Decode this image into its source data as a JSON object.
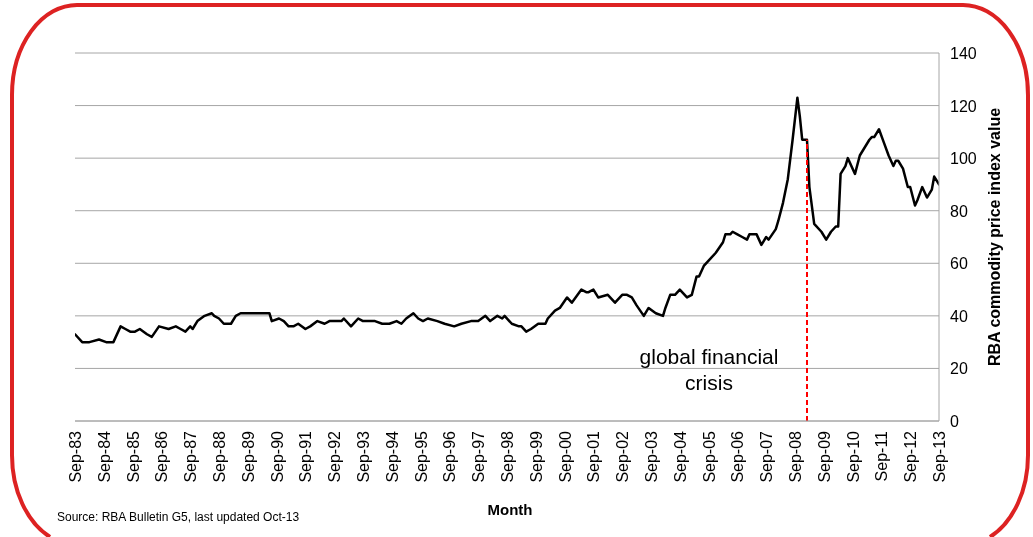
{
  "chart_data": {
    "type": "line",
    "xlabel": "Month",
    "ylabel": "RBA commodity price index value",
    "annotations": [
      "Source: RBA Bulletin G5, last updated Oct-13"
    ],
    "x": [
      "1983-09",
      "1983-12",
      "1984-03",
      "1984-07",
      "1984-10",
      "1985-01",
      "1985-04",
      "1985-06",
      "1985-08",
      "1985-10",
      "1985-12",
      "1986-03",
      "1986-05",
      "1986-08",
      "1986-12",
      "1987-03",
      "1987-05",
      "1987-07",
      "1987-09",
      "1987-10",
      "1987-12",
      "1988-03",
      "1988-06",
      "1988-07",
      "1988-09",
      "1988-11",
      "1989-02",
      "1989-04",
      "1989-06",
      "1989-08",
      "1989-10",
      "1989-11",
      "1990-01",
      "1990-04",
      "1990-06",
      "1990-07",
      "1990-10",
      "1990-12",
      "1991-02",
      "1991-04",
      "1991-06",
      "1991-09",
      "1991-11",
      "1992-02",
      "1992-05",
      "1992-07",
      "1992-09",
      "1992-12",
      "1993-01",
      "1993-04",
      "1993-07",
      "1993-09",
      "1993-11",
      "1994-02",
      "1994-05",
      "1994-08",
      "1994-11",
      "1995-01",
      "1995-03",
      "1995-06",
      "1995-08",
      "1995-10",
      "1995-12",
      "1996-04",
      "1996-07",
      "1996-11",
      "1997-02",
      "1997-06",
      "1997-09",
      "1997-12",
      "1998-02",
      "1998-05",
      "1998-07",
      "1998-08",
      "1998-11",
      "1999-02",
      "1999-03",
      "1999-05",
      "1999-07",
      "1999-10",
      "2000-01",
      "2000-02",
      "2000-05",
      "2000-07",
      "2000-10",
      "2000-12",
      "2001-04",
      "2001-06",
      "2001-07",
      "2001-09",
      "2001-11",
      "2002-03",
      "2002-06",
      "2002-09",
      "2002-11",
      "2003-01",
      "2003-03",
      "2003-06",
      "2003-08",
      "2003-11",
      "2004-02",
      "2004-03",
      "2004-05",
      "2004-07",
      "2004-09",
      "2004-12",
      "2005-02",
      "2005-04",
      "2005-05",
      "2005-07",
      "2005-09",
      "2005-12",
      "2006-03",
      "2006-04",
      "2006-06",
      "2006-07",
      "2006-09",
      "2006-11",
      "2007-01",
      "2007-02",
      "2007-05",
      "2007-07",
      "2007-09",
      "2007-10",
      "2008-01",
      "2008-02",
      "2008-04",
      "2008-06",
      "2008-08",
      "2008-10",
      "2008-11",
      "2008-12",
      "2009-02",
      "2009-03",
      "2009-05",
      "2009-08",
      "2009-10",
      "2009-12",
      "2010-02",
      "2010-03",
      "2010-04",
      "2010-06",
      "2010-07",
      "2010-10",
      "2010-12",
      "2011-04",
      "2011-05",
      "2011-06",
      "2011-08",
      "2011-10",
      "2011-12",
      "2012-02",
      "2012-03",
      "2012-04",
      "2012-06",
      "2012-08",
      "2012-09",
      "2012-11",
      "2012-12",
      "2013-02",
      "2013-04",
      "2013-06",
      "2013-07",
      "2013-09"
    ],
    "values": [
      33,
      30,
      30,
      31,
      30,
      30,
      36,
      35,
      34,
      34,
      35,
      33,
      32,
      36,
      35,
      36,
      35,
      34,
      36,
      35,
      38,
      40,
      41,
      40,
      39,
      37,
      37,
      40,
      41,
      41,
      41,
      41,
      41,
      41,
      41,
      38,
      39,
      38,
      36,
      36,
      37,
      35,
      36,
      38,
      37,
      38,
      38,
      38,
      39,
      36,
      39,
      38,
      38,
      38,
      37,
      37,
      38,
      37,
      39,
      41,
      39,
      38,
      39,
      38,
      37,
      36,
      37,
      38,
      38,
      40,
      38,
      40,
      39,
      40,
      37,
      36,
      36,
      34,
      35,
      37,
      37,
      39,
      42,
      43,
      47,
      45,
      50,
      49,
      49,
      50,
      47,
      48,
      45,
      48,
      48,
      47,
      44,
      40,
      43,
      41,
      40,
      43,
      48,
      48,
      50,
      47,
      48,
      55,
      55,
      59,
      61,
      64,
      68,
      71,
      71,
      72,
      71,
      70,
      69,
      71,
      71,
      67,
      70,
      69,
      73,
      76,
      83,
      92,
      107,
      123,
      116,
      107,
      107,
      89,
      75,
      72,
      69,
      72,
      74,
      74,
      94,
      97,
      100,
      94,
      101,
      107,
      108,
      108,
      111,
      106,
      101,
      97,
      99,
      99,
      96,
      89,
      89,
      82,
      84,
      89,
      85,
      88,
      93,
      90
    ],
    "color": "#000000",
    "xlim": [
      "1983-09",
      "2013-09"
    ],
    "xticks": [
      {
        "value": "1983-09",
        "label": "Sep-83"
      },
      {
        "value": "1984-09",
        "label": "Sep-84"
      },
      {
        "value": "1985-09",
        "label": "Sep-85"
      },
      {
        "value": "1986-09",
        "label": "Sep-86"
      },
      {
        "value": "1987-09",
        "label": "Sep-87"
      },
      {
        "value": "1988-09",
        "label": "Sep-88"
      },
      {
        "value": "1989-09",
        "label": "Sep-89"
      },
      {
        "value": "1990-09",
        "label": "Sep-90"
      },
      {
        "value": "1991-09",
        "label": "Sep-91"
      },
      {
        "value": "1992-09",
        "label": "Sep-92"
      },
      {
        "value": "1993-09",
        "label": "Sep-93"
      },
      {
        "value": "1994-09",
        "label": "Sep-94"
      },
      {
        "value": "1995-09",
        "label": "Sep-95"
      },
      {
        "value": "1996-09",
        "label": "Sep-96"
      },
      {
        "value": "1997-09",
        "label": "Sep-97"
      },
      {
        "value": "1998-09",
        "label": "Sep-98"
      },
      {
        "value": "1999-09",
        "label": "Sep-99"
      },
      {
        "value": "2000-09",
        "label": "Sep-00"
      },
      {
        "value": "2001-09",
        "label": "Sep-01"
      },
      {
        "value": "2002-09",
        "label": "Sep-02"
      },
      {
        "value": "2003-09",
        "label": "Sep-03"
      },
      {
        "value": "2004-09",
        "label": "Sep-04"
      },
      {
        "value": "2005-09",
        "label": "Sep-05"
      },
      {
        "value": "2006-09",
        "label": "Sep-06"
      },
      {
        "value": "2007-09",
        "label": "Sep-07"
      },
      {
        "value": "2008-09",
        "label": "Sep-08"
      },
      {
        "value": "2009-09",
        "label": "Sep-09"
      },
      {
        "value": "2010-09",
        "label": "Sep-10"
      },
      {
        "value": "2011-09",
        "label": "Sep-11"
      },
      {
        "value": "2012-09",
        "label": "Sep-12"
      },
      {
        "value": "2013-09",
        "label": "Sep-13"
      }
    ],
    "ylim": [
      0,
      140
    ],
    "yticks": [
      0,
      20,
      40,
      60,
      80,
      100,
      120,
      140
    ],
    "grid": "y",
    "ref_lines": [
      {
        "axis": "x",
        "value": "2009-02",
        "label": "global financial crisis",
        "color": "#ff0000",
        "line_style": "dashed"
      }
    ]
  }
}
